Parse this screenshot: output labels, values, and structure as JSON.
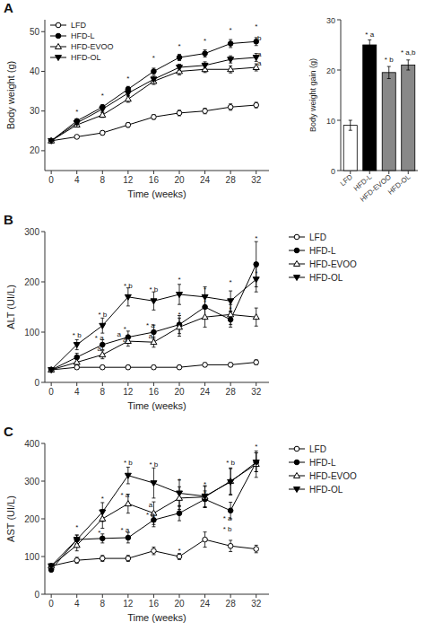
{
  "chart_data": [
    {
      "type": "line",
      "title": "A",
      "x_label": "Time (weeks)",
      "y_label": "Body weight (g)",
      "x": [
        0,
        4,
        8,
        12,
        16,
        20,
        24,
        28,
        32
      ],
      "xlim": [
        -1,
        34
      ],
      "ylim": [
        15,
        53
      ],
      "xticks": [
        0,
        4,
        8,
        12,
        16,
        20,
        24,
        28,
        32
      ],
      "yticks": [
        20,
        30,
        40,
        50
      ],
      "legend": "upper left",
      "series": [
        {
          "name": "LFD",
          "color": "black",
          "marker": "circle-open",
          "values": [
            22.5,
            23.5,
            24.5,
            26.5,
            28.5,
            29.5,
            30.0,
            31.0,
            31.5
          ],
          "errors": [
            0.4,
            0.4,
            0.5,
            0.6,
            0.6,
            0.7,
            0.7,
            0.8,
            0.7
          ]
        },
        {
          "name": "HFD-L",
          "color": "black",
          "marker": "circle",
          "values": [
            22.5,
            27.5,
            31.0,
            35.5,
            40.0,
            43.5,
            44.5,
            47.0,
            47.5
          ],
          "errors": [
            0.4,
            0.5,
            0.6,
            0.7,
            0.8,
            0.8,
            0.9,
            1.0,
            1.0
          ]
        },
        {
          "name": "HFD-EVOO",
          "color": "black",
          "marker": "triangle-open",
          "values": [
            22.5,
            26.5,
            29.0,
            33.0,
            37.5,
            40.0,
            40.5,
            40.5,
            41.0
          ],
          "errors": [
            0.4,
            0.5,
            0.6,
            0.8,
            0.8,
            0.9,
            0.8,
            0.9,
            0.9
          ]
        },
        {
          "name": "HFD-OL",
          "color": "black",
          "marker": "triangle-down",
          "values": [
            22.5,
            27.0,
            30.5,
            34.5,
            38.0,
            41.0,
            41.5,
            43.0,
            43.5
          ],
          "errors": [
            0.4,
            0.5,
            0.6,
            0.7,
            0.8,
            0.8,
            0.9,
            0.9,
            1.0
          ]
        }
      ],
      "annotations": [
        {
          "text": "*",
          "x": 4,
          "y": 29.0
        },
        {
          "text": "*",
          "x": 8,
          "y": 33.0
        },
        {
          "text": "*",
          "x": 12,
          "y": 37.5
        },
        {
          "text": "*",
          "x": 16,
          "y": 42.5
        },
        {
          "text": "*",
          "x": 20,
          "y": 45.5
        },
        {
          "text": "*",
          "x": 24,
          "y": 47.0
        },
        {
          "text": "*",
          "x": 28,
          "y": 49.5
        },
        {
          "text": "*",
          "x": 32,
          "y": 50.5
        },
        {
          "text": "b",
          "x": 32.5,
          "y": 47.5
        },
        {
          "text": "a",
          "x": 32.5,
          "y": 43.5
        },
        {
          "text": "a",
          "x": 32.5,
          "y": 41.2
        }
      ]
    },
    {
      "type": "bar",
      "y_label": "Body weight gain (g)",
      "categories": [
        "LFD",
        "HFD-L",
        "HFD-EVOO",
        "HFD-OL"
      ],
      "values": [
        9.0,
        25.0,
        19.5,
        21.0
      ],
      "errors": [
        1.0,
        1.0,
        1.2,
        1.0
      ],
      "colors": [
        "white",
        "black",
        "#888888",
        "#888888"
      ],
      "ylim": [
        0,
        30
      ],
      "yticks": [
        0,
        10,
        20,
        30
      ],
      "annotations": [
        {
          "text": "* a",
          "category": "HFD-L",
          "y": 26.5
        },
        {
          "text": "* b",
          "category": "HFD-EVOO",
          "y": 21.5
        },
        {
          "text": "* a,b",
          "category": "HFD-OL",
          "y": 22.8
        }
      ]
    },
    {
      "type": "line",
      "title": "B",
      "x_label": "Time (weeks)",
      "y_label": "ALT (UI/L)",
      "x": [
        0,
        4,
        8,
        12,
        16,
        20,
        24,
        28,
        32
      ],
      "xlim": [
        -1,
        34
      ],
      "ylim": [
        0,
        300
      ],
      "xticks": [
        0,
        4,
        8,
        12,
        16,
        20,
        24,
        28,
        32
      ],
      "yticks": [
        0,
        100,
        200,
        300
      ],
      "legend": "right",
      "series": [
        {
          "name": "LFD",
          "color": "black",
          "marker": "circle-open",
          "values": [
            25,
            30,
            30,
            30,
            30,
            30,
            35,
            35,
            40
          ],
          "errors": [
            2,
            4,
            4,
            4,
            4,
            4,
            4,
            4,
            5
          ]
        },
        {
          "name": "HFD-L",
          "color": "black",
          "marker": "circle",
          "values": [
            25,
            50,
            75,
            90,
            100,
            115,
            150,
            125,
            235
          ],
          "errors": [
            3,
            8,
            10,
            12,
            14,
            18,
            20,
            15,
            45
          ]
        },
        {
          "name": "HFD-EVOO",
          "color": "black",
          "marker": "triangle-open",
          "values": [
            25,
            40,
            55,
            82,
            80,
            110,
            130,
            135,
            130
          ],
          "errors": [
            3,
            6,
            8,
            10,
            10,
            18,
            20,
            20,
            18
          ]
        },
        {
          "name": "HFD-OL",
          "color": "black",
          "marker": "triangle-down",
          "values": [
            25,
            75,
            113,
            170,
            162,
            175,
            170,
            162,
            205
          ],
          "errors": [
            3,
            10,
            15,
            18,
            18,
            20,
            20,
            20,
            25
          ]
        }
      ],
      "annotations": [
        {
          "text": "* b",
          "x": 4,
          "y": 88
        },
        {
          "text": "* b",
          "x": 8,
          "y": 128
        },
        {
          "text": "* a",
          "x": 7.5,
          "y": 83
        },
        {
          "text": "a",
          "x": 7.5,
          "y": 60
        },
        {
          "text": "* b",
          "x": 12,
          "y": 186
        },
        {
          "text": "*",
          "x": 11.5,
          "y": 100
        },
        {
          "text": "a",
          "x": 11.5,
          "y": 90
        },
        {
          "text": "a",
          "x": 11.5,
          "y": 78
        },
        {
          "text": "* b",
          "x": 16,
          "y": 178
        },
        {
          "text": "* a",
          "x": 15.5,
          "y": 108
        },
        {
          "text": "a",
          "x": 15.5,
          "y": 86
        },
        {
          "text": "*",
          "x": 20,
          "y": 198
        },
        {
          "text": "*",
          "x": 20,
          "y": 128
        },
        {
          "text": "*",
          "x": 24,
          "y": 178
        },
        {
          "text": "*",
          "x": 24,
          "y": 153
        },
        {
          "text": "*",
          "x": 28,
          "y": 193
        },
        {
          "text": "*",
          "x": 28,
          "y": 140
        },
        {
          "text": "*",
          "x": 32,
          "y": 280
        },
        {
          "text": "*",
          "x": 32,
          "y": 210
        }
      ]
    },
    {
      "type": "line",
      "title": "C",
      "x_label": "Time (weeks)",
      "y_label": "AST (UI/L)",
      "x": [
        0,
        4,
        8,
        12,
        16,
        20,
        24,
        28,
        32
      ],
      "xlim": [
        -1,
        34
      ],
      "ylim": [
        0,
        400
      ],
      "xticks": [
        0,
        4,
        8,
        12,
        16,
        20,
        24,
        28,
        32
      ],
      "yticks": [
        0,
        100,
        200,
        300,
        400
      ],
      "legend": "right",
      "series": [
        {
          "name": "LFD",
          "color": "black",
          "marker": "circle-open",
          "values": [
            75,
            90,
            95,
            95,
            115,
            100,
            145,
            128,
            120
          ],
          "errors": [
            5,
            8,
            8,
            8,
            10,
            8,
            20,
            15,
            10
          ]
        },
        {
          "name": "HFD-L",
          "color": "black",
          "marker": "circle",
          "values": [
            65,
            145,
            148,
            150,
            197,
            215,
            252,
            222,
            350
          ],
          "errors": [
            5,
            12,
            12,
            14,
            18,
            20,
            22,
            22,
            25
          ]
        },
        {
          "name": "HFD-EVOO",
          "color": "black",
          "marker": "triangle-open",
          "values": [
            75,
            130,
            200,
            240,
            215,
            255,
            258,
            300,
            345
          ],
          "errors": [
            5,
            15,
            25,
            25,
            30,
            30,
            28,
            35,
            35
          ]
        },
        {
          "name": "HFD-OL",
          "color": "black",
          "marker": "triangle-down",
          "values": [
            75,
            145,
            218,
            315,
            295,
            268,
            260,
            298,
            350
          ],
          "errors": [
            5,
            12,
            25,
            22,
            40,
            35,
            28,
            35,
            25
          ]
        }
      ],
      "annotations": [
        {
          "text": "*",
          "x": 4,
          "y": 168
        },
        {
          "text": "*",
          "x": 8,
          "y": 246
        },
        {
          "text": "*",
          "x": 7.5,
          "y": 155
        },
        {
          "text": "* b",
          "x": 12,
          "y": 340
        },
        {
          "text": "* a",
          "x": 11.5,
          "y": 255
        },
        {
          "text": "* a",
          "x": 11.5,
          "y": 162
        },
        {
          "text": "* b",
          "x": 16,
          "y": 335
        },
        {
          "text": "a",
          "x": 15.5,
          "y": 228
        },
        {
          "text": "* a",
          "x": 15.5,
          "y": 202
        },
        {
          "text": "*",
          "x": 20,
          "y": 293
        },
        {
          "text": "*",
          "x": 20,
          "y": 107
        },
        {
          "text": "*",
          "x": 24,
          "y": 283
        },
        {
          "text": "*",
          "x": 24,
          "y": 260
        },
        {
          "text": "* b",
          "x": 28,
          "y": 340
        },
        {
          "text": "* a",
          "x": 27.5,
          "y": 193
        },
        {
          "text": "* b",
          "x": 27.5,
          "y": 165
        },
        {
          "text": "*",
          "x": 32,
          "y": 383
        }
      ]
    }
  ]
}
